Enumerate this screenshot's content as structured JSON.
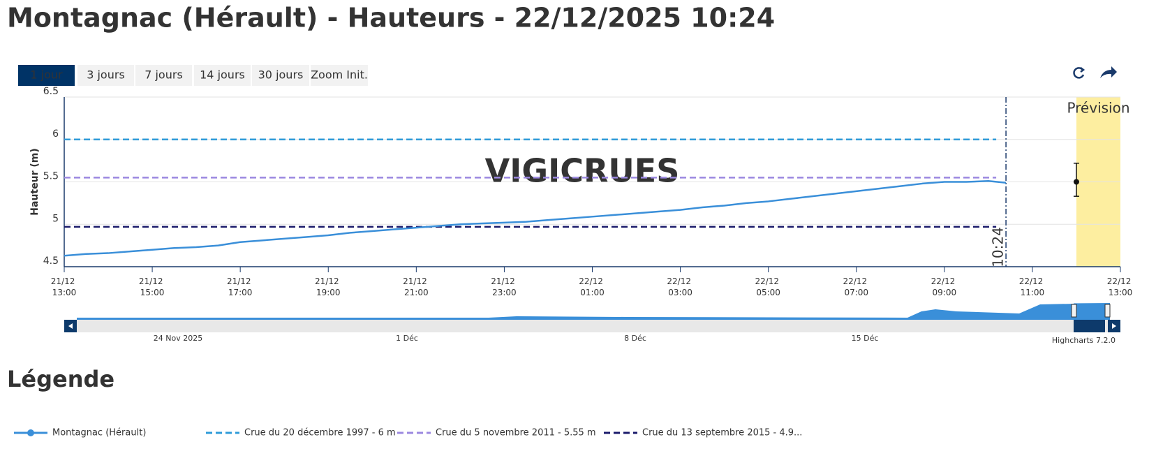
{
  "page_title": "Montagnac (Hérault) - Hauteurs - 22/12/2025 10:24",
  "range_buttons": [
    "1 jour",
    "3 jours",
    "7 jours",
    "14 jours",
    "30 jours",
    "Zoom Init."
  ],
  "legend_heading": "Légende",
  "credits": "Highcharts 7.2.0",
  "navigator": {
    "labels": [
      "24 Nov 2025",
      "1 Déc",
      "8 Déc",
      "15 Déc"
    ]
  },
  "chart_data": {
    "type": "line",
    "watermark": "VIGICRUES",
    "y_label": "Hauteur (m)",
    "ylim": [
      4.5,
      6.5
    ],
    "yticks": [
      4.5,
      5,
      5.5,
      6,
      6.5
    ],
    "grid": true,
    "xlim": [
      "21/12 13:00",
      "22/12 13:00"
    ],
    "xticks": [
      "21/12 13:00",
      "21/12 15:00",
      "21/12 17:00",
      "21/12 19:00",
      "21/12 21:00",
      "21/12 23:00",
      "22/12 01:00",
      "22/12 03:00",
      "22/12 05:00",
      "22/12 07:00",
      "22/12 09:00",
      "22/12 11:00",
      "22/12 13:00"
    ],
    "series": [
      {
        "name": "Montagnac (Hérault)",
        "color": "#3a8fd9",
        "x": [
          "21/12 13:00",
          "21/12 13:30",
          "21/12 14:00",
          "21/12 14:30",
          "21/12 15:00",
          "21/12 15:30",
          "21/12 16:00",
          "21/12 16:30",
          "21/12 17:00",
          "21/12 17:30",
          "21/12 18:00",
          "21/12 18:30",
          "21/12 19:00",
          "21/12 19:30",
          "21/12 20:00",
          "21/12 20:30",
          "21/12 21:00",
          "21/12 21:30",
          "21/12 22:00",
          "21/12 22:30",
          "21/12 23:00",
          "21/12 23:30",
          "22/12 00:00",
          "22/12 00:30",
          "22/12 01:00",
          "22/12 01:30",
          "22/12 02:00",
          "22/12 02:30",
          "22/12 03:00",
          "22/12 03:30",
          "22/12 04:00",
          "22/12 04:30",
          "22/12 05:00",
          "22/12 05:30",
          "22/12 06:00",
          "22/12 06:30",
          "22/12 07:00",
          "22/12 07:30",
          "22/12 08:00",
          "22/12 08:30",
          "22/12 09:00",
          "22/12 09:30",
          "22/12 10:00",
          "22/12 10:24"
        ],
        "values": [
          4.63,
          4.65,
          4.66,
          4.68,
          4.7,
          4.72,
          4.73,
          4.75,
          4.79,
          4.81,
          4.83,
          4.85,
          4.87,
          4.9,
          4.92,
          4.94,
          4.96,
          4.98,
          5.0,
          5.01,
          5.02,
          5.03,
          5.05,
          5.07,
          5.09,
          5.11,
          5.13,
          5.15,
          5.17,
          5.2,
          5.22,
          5.25,
          5.27,
          5.3,
          5.33,
          5.36,
          5.39,
          5.42,
          5.45,
          5.48,
          5.5,
          5.5,
          5.51,
          5.49
        ]
      }
    ],
    "thresholds": [
      {
        "name": "Crue du 20 décembre 1997 - 6 m",
        "color": "#2f9bd9",
        "value": 6
      },
      {
        "name": "Crue du 5 novembre 2011 - 5.55 m",
        "color": "#9b88e0",
        "value": 5.55
      },
      {
        "name": "Crue du 13 septembre 2015 - 4.9...",
        "color": "#1b1b6b",
        "value": 4.97
      }
    ],
    "now": {
      "x": "22/12 10:24",
      "label": "10:24"
    },
    "forecast": {
      "label": "Prévision",
      "band": [
        "22/12 12:00",
        "22/12 13:00"
      ],
      "color": "#fdeea0",
      "x": "22/12 12:00",
      "value": 5.5,
      "low": 5.33,
      "high": 5.72
    }
  }
}
